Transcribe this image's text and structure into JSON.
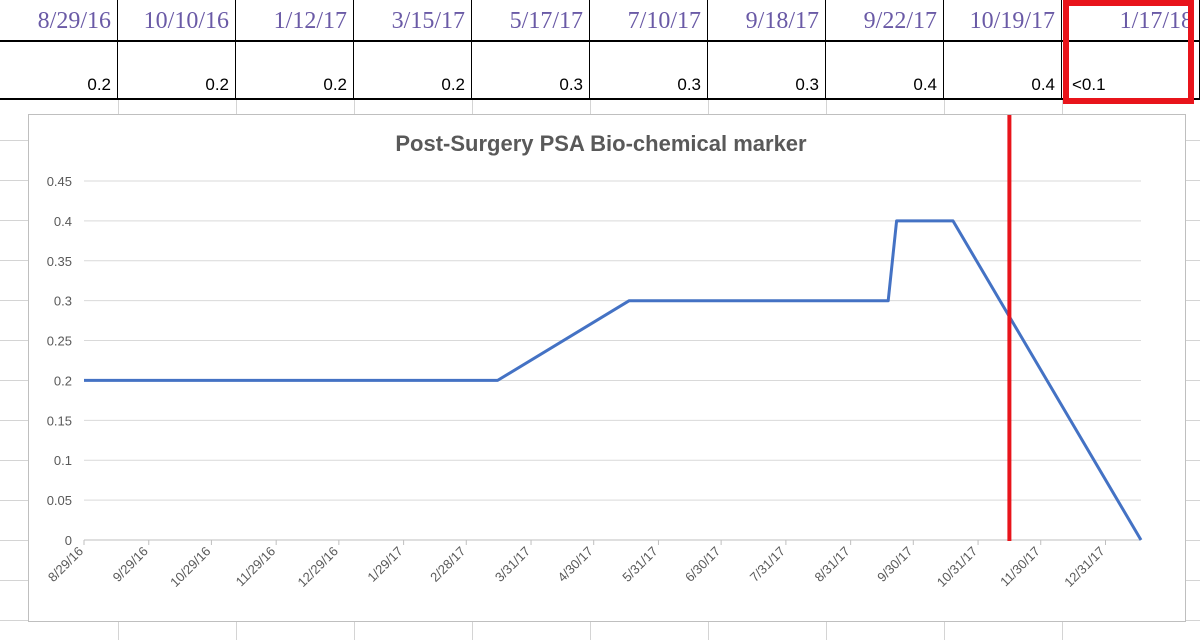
{
  "table": {
    "columns": [
      {
        "date": "8/29/16",
        "value": "0.2"
      },
      {
        "date": "10/10/16",
        "value": "0.2"
      },
      {
        "date": "1/12/17",
        "value": "0.2"
      },
      {
        "date": "3/15/17",
        "value": "0.2"
      },
      {
        "date": "5/17/17",
        "value": "0.3"
      },
      {
        "date": "7/10/17",
        "value": "0.3"
      },
      {
        "date": "9/18/17",
        "value": "0.3"
      },
      {
        "date": "9/22/17",
        "value": "0.4"
      },
      {
        "date": "10/19/17",
        "value": "0.4"
      },
      {
        "date": "1/17/18",
        "value": "<0.1"
      }
    ]
  },
  "colors": {
    "line": "#4472c4",
    "marker_line": "#e8141b",
    "highlight": "#e8141b",
    "date_text": "#6a5aa6"
  },
  "chart_data": {
    "type": "line",
    "title": "Post-Surgery PSA Bio-chemical marker",
    "xlabel": "",
    "ylabel": "",
    "x": [
      "2016-08-29",
      "2017-03-15",
      "2017-05-17",
      "2017-09-18",
      "2017-09-22",
      "2017-10-19",
      "2018-01-17"
    ],
    "series": [
      {
        "values": [
          0.2,
          0.2,
          0.3,
          0.3,
          0.4,
          0.4,
          0
        ]
      }
    ],
    "ylim": [
      0,
      0.45
    ],
    "yticks": [
      "0",
      "0.05",
      "0.1",
      "0.15",
      "0.2",
      "0.25",
      "0.3",
      "0.35",
      "0.4",
      "0.45"
    ],
    "xticks": [
      "8/29/16",
      "9/29/16",
      "10/29/16",
      "11/29/16",
      "12/29/16",
      "1/29/17",
      "2/28/17",
      "3/31/17",
      "4/30/17",
      "5/31/17",
      "6/30/17",
      "7/31/17",
      "8/31/17",
      "9/30/17",
      "10/31/17",
      "11/30/17",
      "12/31/17"
    ],
    "xtick_dates": [
      "2016-08-29",
      "2016-09-29",
      "2016-10-29",
      "2016-11-29",
      "2016-12-29",
      "2017-01-29",
      "2017-02-28",
      "2017-03-31",
      "2017-04-30",
      "2017-05-31",
      "2017-06-30",
      "2017-07-31",
      "2017-08-31",
      "2017-09-30",
      "2017-10-31",
      "2017-11-30",
      "2017-12-31"
    ],
    "xlim": [
      "2016-08-29",
      "2018-01-17"
    ],
    "vertical_marker_date": "2017-11-15",
    "grid": true
  }
}
